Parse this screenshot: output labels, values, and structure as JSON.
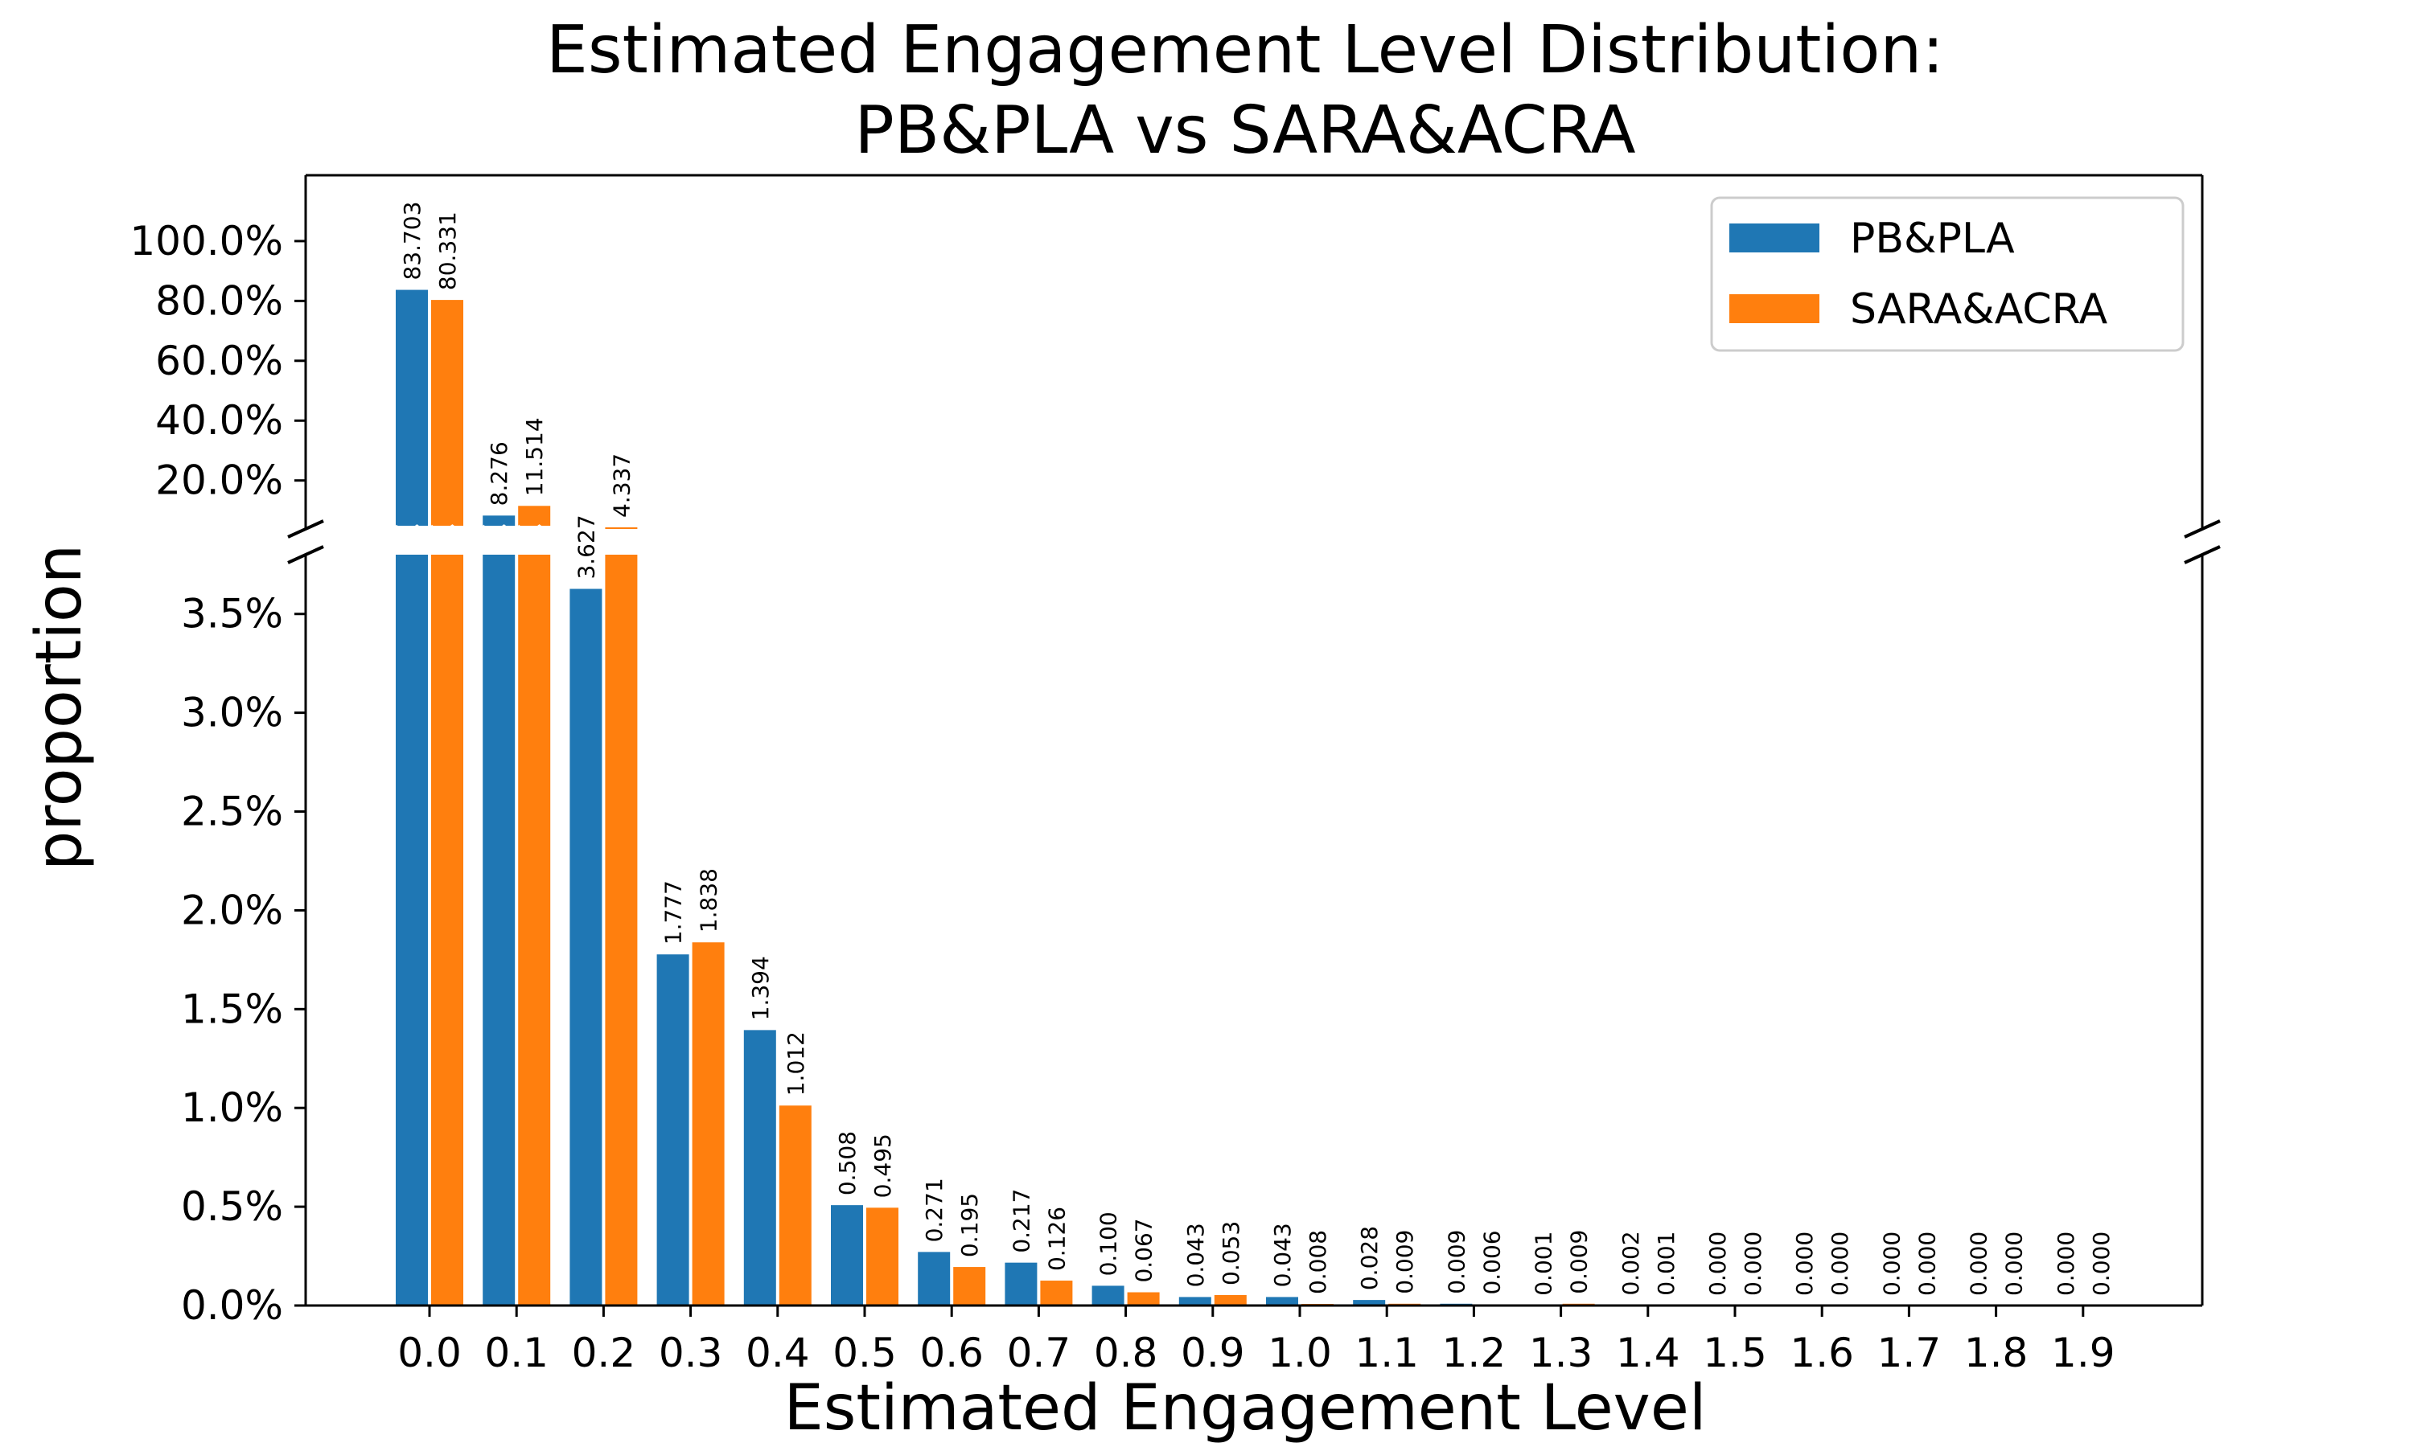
{
  "chart_data": {
    "type": "bar",
    "title_lines": [
      "Estimated Engagement Level Distribution:",
      "PB&PLA vs SARA&ACRA"
    ],
    "xlabel": "Estimated Engagement Level",
    "ylabel": "proportion",
    "categories": [
      "0.0",
      "0.1",
      "0.2",
      "0.3",
      "0.4",
      "0.5",
      "0.6",
      "0.7",
      "0.8",
      "0.9",
      "1.0",
      "1.1",
      "1.2",
      "1.3",
      "1.4",
      "1.5",
      "1.6",
      "1.7",
      "1.8",
      "1.9"
    ],
    "series": [
      {
        "name": "PB&PLA",
        "color": "#1f77b4",
        "values": [
          83.703,
          8.276,
          3.627,
          1.777,
          1.394,
          0.508,
          0.271,
          0.217,
          0.1,
          0.043,
          0.043,
          0.028,
          0.009,
          0.001,
          0.002,
          0.0,
          0.0,
          0.0,
          0.0,
          0.0
        ],
        "labels": [
          "83.703",
          "8.276",
          "3.627",
          "1.777",
          "1.394",
          "0.508",
          "0.271",
          "0.217",
          "0.100",
          "0.043",
          "0.043",
          "0.028",
          "0.009",
          "0.001",
          "0.002",
          "0.000",
          "0.000",
          "0.000",
          "0.000",
          "0.000"
        ]
      },
      {
        "name": "SARA&ACRA",
        "color": "#ff7f0e",
        "values": [
          80.331,
          11.514,
          4.337,
          1.838,
          1.012,
          0.495,
          0.195,
          0.126,
          0.067,
          0.053,
          0.008,
          0.009,
          0.006,
          0.009,
          0.001,
          0.0,
          0.0,
          0.0,
          0.0,
          0.0
        ],
        "labels": [
          "80.331",
          "11.514",
          "4.337",
          "1.838",
          "1.012",
          "0.495",
          "0.195",
          "0.126",
          "0.067",
          "0.053",
          "0.008",
          "0.009",
          "0.006",
          "0.009",
          "0.001",
          "0.000",
          "0.000",
          "0.000",
          "0.000",
          "0.000"
        ]
      }
    ],
    "broken_axis": true,
    "upper_axis": {
      "ylim": [
        3.8,
        122
      ],
      "ticks": [
        20,
        40,
        60,
        80,
        100
      ],
      "tick_labels": [
        "20.0%",
        "40.0%",
        "60.0%",
        "80.0%",
        "100.0%"
      ]
    },
    "lower_axis": {
      "ylim": [
        0,
        3.8
      ],
      "ticks": [
        0,
        0.5,
        1.0,
        1.5,
        2.0,
        2.5,
        3.0,
        3.5
      ],
      "tick_labels": [
        "0.0%",
        "0.5%",
        "1.0%",
        "1.5%",
        "2.0%",
        "2.5%",
        "3.0%",
        "3.5%"
      ]
    },
    "legend": {
      "position": "upper right",
      "entries": [
        "PB&PLA",
        "SARA&ACRA"
      ]
    },
    "grid": false
  }
}
